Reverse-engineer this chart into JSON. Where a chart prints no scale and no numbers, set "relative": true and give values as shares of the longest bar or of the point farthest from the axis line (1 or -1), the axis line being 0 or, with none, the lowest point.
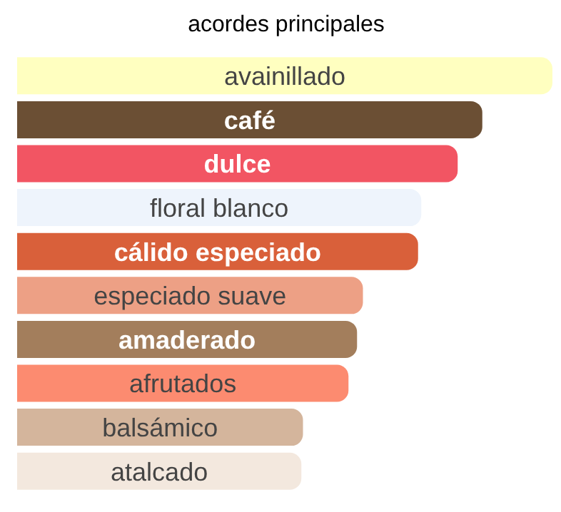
{
  "chart_data": {
    "type": "bar",
    "orientation": "horizontal",
    "relative": true,
    "title": "acordes principales",
    "categories": [
      "avainillado",
      "café",
      "dulce",
      "floral blanco",
      "cálido especiado",
      "especiado suave",
      "amaderado",
      "afrutados",
      "balsámico",
      "atalcado"
    ],
    "values": [
      1,
      0.869,
      0.823,
      0.755,
      0.749,
      0.646,
      0.635,
      0.619,
      0.534,
      0.531
    ],
    "colors": [
      "#ffffc0",
      "#6b4f34",
      "#f25563",
      "#eef4fc",
      "#d9603a",
      "#eda085",
      "#a37e5c",
      "#fc8b70",
      "#d4b59c",
      "#f3e8de"
    ]
  }
}
